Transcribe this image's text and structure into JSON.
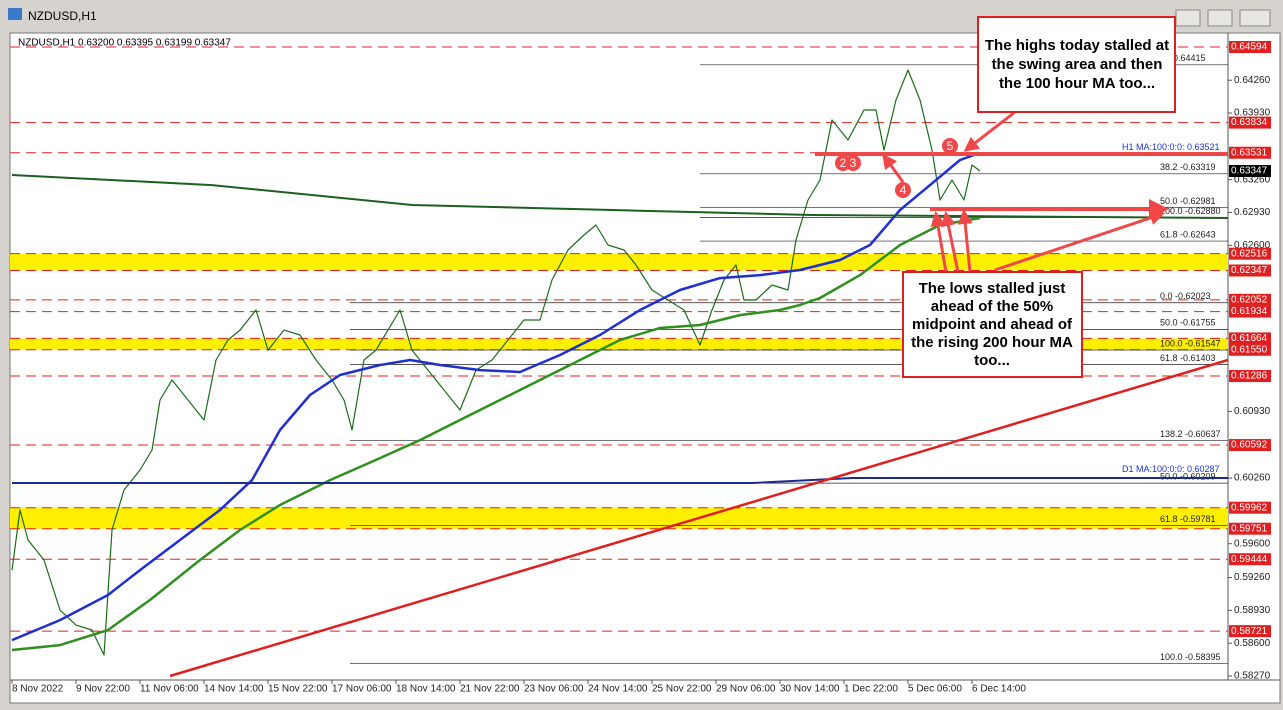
{
  "chart_data": {
    "type": "line",
    "title": "NZDUSD,H1",
    "header": "NZDUSD,H1  0.63200 0.63395 0.63199 0.63347",
    "last": 0.63347,
    "xlim": [
      0,
      608
    ],
    "ylim": [
      0.5827,
      0.64594
    ],
    "xticks": [
      {
        "value": 0,
        "label": "8 Nov 2022"
      },
      {
        "value": 32,
        "label": "9 Nov 22:00"
      },
      {
        "value": 64,
        "label": "11 Nov 06:00"
      },
      {
        "value": 96,
        "label": "14 Nov 14:00"
      },
      {
        "value": 128,
        "label": "15 Nov 22:00"
      },
      {
        "value": 160,
        "label": "17 Nov 06:00"
      },
      {
        "value": 192,
        "label": "18 Nov 14:00"
      },
      {
        "value": 224,
        "label": "21 Nov 22:00"
      },
      {
        "value": 256,
        "label": "23 Nov 06:00"
      },
      {
        "value": 288,
        "label": "24 Nov 14:00"
      },
      {
        "value": 320,
        "label": "25 Nov 22:00"
      },
      {
        "value": 352,
        "label": "29 Nov 06:00"
      },
      {
        "value": 384,
        "label": "30 Nov 14:00"
      },
      {
        "value": 416,
        "label": "1 Dec 22:00"
      },
      {
        "value": 448,
        "label": "5 Dec 06:00"
      },
      {
        "value": 480,
        "label": "6 Dec 14:00"
      }
    ],
    "yticks": [
      {
        "value": 0.6426,
        "label": "0.64260"
      },
      {
        "value": 0.6393,
        "label": "0.63930"
      },
      {
        "value": 0.6326,
        "label": "0.63260"
      },
      {
        "value": 0.6293,
        "label": "0.62930"
      },
      {
        "value": 0.626,
        "label": "0.62600"
      },
      {
        "value": 0.6093,
        "label": "0.60930"
      },
      {
        "value": 0.6026,
        "label": "0.60260"
      },
      {
        "value": 0.596,
        "label": "0.59600"
      },
      {
        "value": 0.5926,
        "label": "0.59260"
      },
      {
        "value": 0.5893,
        "label": "0.58930"
      },
      {
        "value": 0.586,
        "label": "0.58600"
      },
      {
        "value": 0.5827,
        "label": "0.58270"
      }
    ],
    "levels": [
      0.64594,
      0.63834,
      0.63531,
      0.62052,
      0.61934,
      0.61286,
      0.60592,
      0.59444,
      0.58721
    ],
    "zones": [
      [
        0.62516,
        0.62347
      ],
      [
        0.61664,
        {
          "value": 0.6155,
          "label": "0.61550"
        }
      ],
      [
        0.59962,
        0.59751
      ]
    ],
    "fib_labels": [
      {
        "value": 0.64415,
        "label": ".0 -0.64415"
      },
      {
        "value": 0.63319,
        "label": "38.2 -0.63319"
      },
      {
        "value": 0.62981,
        "label": "50.0 -0.62981"
      },
      {
        "value": 0.6288,
        "label": "100.0 -0.62880"
      },
      {
        "value": 0.62643,
        "label": "61.8 -0.62643"
      },
      {
        "value": 0.62023,
        "label": "0.0 -0.62023"
      },
      {
        "value": 0.61755,
        "label": "50.0 -0.61755"
      },
      {
        "value": 0.61547,
        "label": "100.0 -0.61547"
      },
      {
        "value": 0.61403,
        "label": "61.8 -0.61403"
      },
      {
        "value": 0.60637,
        "label": "138.2 -0.60637"
      },
      {
        "value": 0.60209,
        "label": "50.0 -0.60209"
      },
      {
        "value": 0.59781,
        "label": "61.8 -0.59781"
      },
      {
        "value": 0.58395,
        "label": "100.0 -0.58395"
      }
    ],
    "ma_labels": [
      {
        "value": 0.63521,
        "label": "H1 MA:100:0:0: 0.63521"
      },
      {
        "value": 0.60287,
        "label": "D1 MA:100:0:0: 0.60287"
      }
    ],
    "series": [
      {
        "color": "#1d6a1d",
        "width": 1.2,
        "x": [
          0,
          4,
          8,
          16,
          24,
          32,
          40,
          46,
          50,
          56,
          64,
          70,
          74,
          80,
          88,
          96,
          102,
          108,
          114,
          122,
          128,
          136,
          144,
          152,
          160,
          166,
          170,
          176,
          182,
          188,
          194,
          200,
          208,
          216,
          224,
          232,
          240,
          248,
          256,
          264,
          270,
          278,
          286,
          292,
          298,
          306,
          312,
          320,
          328,
          336,
          344,
          350,
          356,
          362,
          366,
          372,
          380,
          388,
          392,
          398,
          404,
          410,
          418,
          426,
          432,
          436,
          442,
          448,
          454,
          460,
          464,
          470,
          476,
          480,
          484
        ],
        "values": [
          0.59335,
          0.59939,
          0.59637,
          0.59436,
          0.58933,
          0.58782,
          0.58732,
          0.58481,
          0.59738,
          0.6014,
          0.60341,
          0.60542,
          0.61045,
          0.61246,
          0.61045,
          0.60844,
          0.61447,
          0.61648,
          0.61748,
          0.6195,
          0.61547,
          0.61748,
          0.61698,
          0.61447,
          0.61246,
          0.61045,
          0.60743,
          0.61447,
          0.61547,
          0.61748,
          0.6195,
          0.61547,
          0.61346,
          0.61145,
          0.60944,
          0.61346,
          0.61447,
          0.61648,
          0.61849,
          0.61849,
          0.62251,
          0.62553,
          0.62704,
          0.62804,
          0.62603,
          0.62553,
          0.62402,
          0.62151,
          0.6205,
          0.6195,
          0.61598,
          0.6195,
          0.62251,
          0.62402,
          0.6205,
          0.6205,
          0.62201,
          0.62151,
          0.62653,
          0.63056,
          0.63257,
          0.6386,
          0.63659,
          0.63961,
          0.63961,
          0.63558,
          0.64061,
          0.64363,
          0.64061,
          0.63558,
          0.63056,
          0.63257,
          0.63056,
          0.63408,
          0.63347
        ]
      },
      {
        "color": "#1f2fd0",
        "width": 2.5,
        "x": [
          0,
          24,
          48,
          64,
          84,
          104,
          120,
          134,
          149,
          164,
          184,
          199,
          214,
          234,
          254,
          274,
          294,
          314,
          334,
          354,
          374,
          394,
          414,
          429,
          444,
          459,
          474,
          481
        ],
        "values": [
          0.58631,
          0.58832,
          0.59084,
          0.59335,
          0.59637,
          0.59939,
          0.6024,
          0.60743,
          0.61095,
          0.61296,
          0.61397,
          0.61447,
          0.61397,
          0.61346,
          0.61326,
          0.61497,
          0.61698,
          0.6195,
          0.62151,
          0.62271,
          0.62301,
          0.62352,
          0.62452,
          0.62603,
          0.62955,
          0.63206,
          0.63458,
          0.63508
        ]
      },
      {
        "color": "#2f8f1f",
        "width": 2.5,
        "x": [
          0,
          24,
          48,
          69,
          94,
          114,
          134,
          159,
          184,
          204,
          224,
          244,
          264,
          284,
          304,
          324,
          344,
          364,
          384,
          394,
          404,
          424,
          444,
          464,
          484
        ],
        "values": [
          0.58531,
          0.58581,
          0.58732,
          0.59034,
          0.59436,
          0.59738,
          0.59989,
          0.6024,
          0.60461,
          0.60642,
          0.60844,
          0.61045,
          0.61246,
          0.61447,
          0.61648,
          0.61769,
          0.61799,
          0.61899,
          0.6195,
          0.62,
          0.6207,
          0.62301,
          0.62603,
          0.62804,
          0.62875
        ]
      },
      {
        "color": "#1b2a8f",
        "width": 2,
        "x": [
          0,
          370,
          420,
          608
        ],
        "values": [
          0.6021,
          0.6021,
          0.60261,
          0.60261
        ]
      },
      {
        "color": "#1e5e1e",
        "width": 2,
        "x": [
          0,
          100,
          200,
          300,
          400,
          608
        ],
        "values": [
          0.63307,
          0.63206,
          0.63005,
          0.62955,
          0.62905,
          0.62875
        ]
      },
      {
        "color": "#e02020",
        "width": 2.5,
        "x": [
          79,
          608
        ],
        "values": [
          0.5827,
          0.61447
        ]
      }
    ],
    "markers": [
      "2",
      "3",
      "4",
      "5"
    ],
    "callouts": [
      {
        "lines": [
          "The highs today stalled at",
          "the swing area and then",
          "the 100 hour MA too..."
        ]
      },
      {
        "lines": [
          "The lows stalled just",
          "ahead of the 50%",
          "midpoint and ahead of",
          "the rising 200 hour MA",
          "too..."
        ]
      }
    ]
  }
}
